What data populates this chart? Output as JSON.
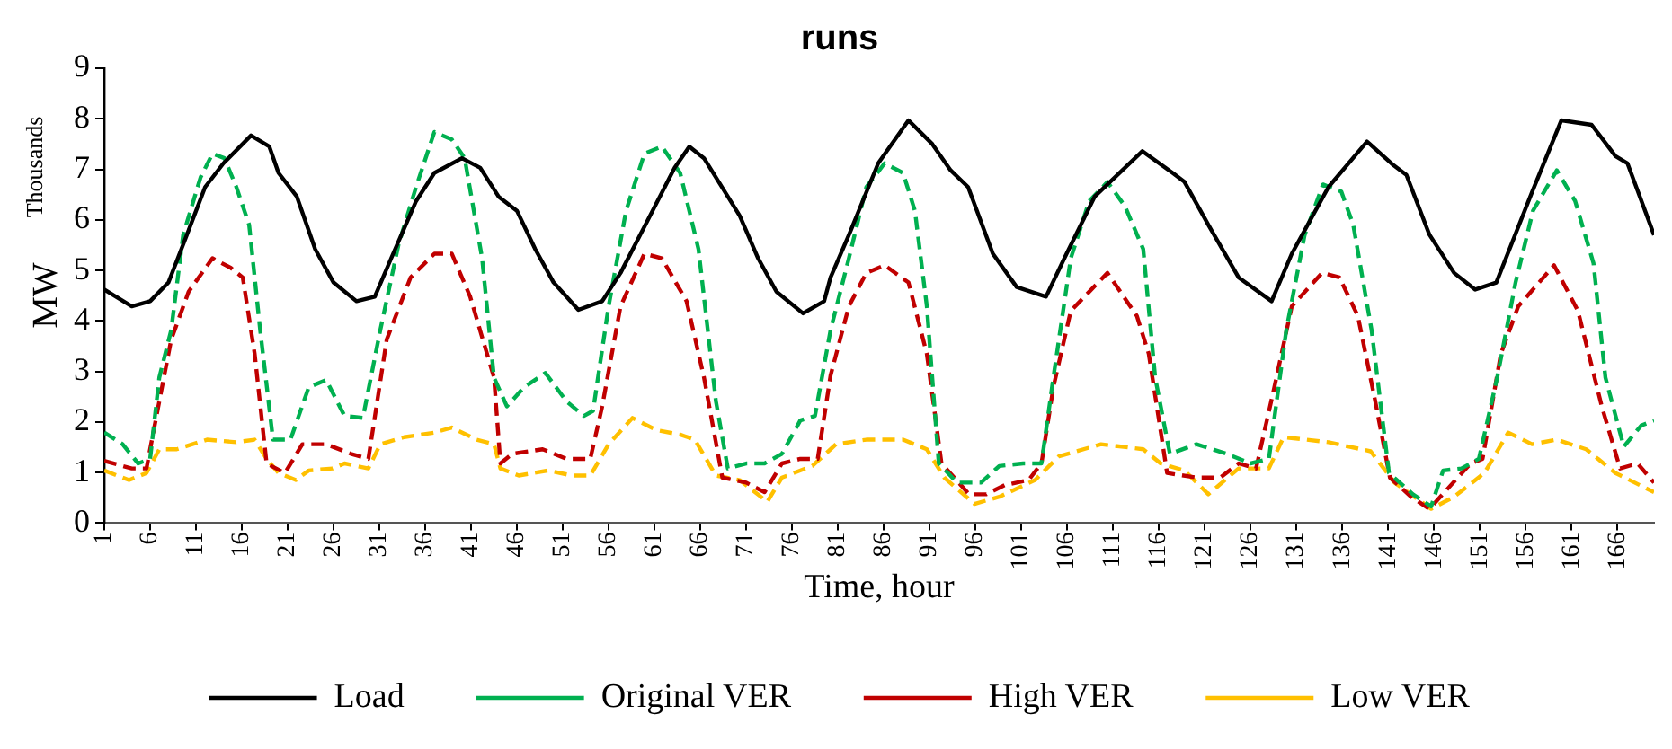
{
  "chart_data": {
    "type": "line",
    "title": "runs",
    "xlabel": "Time, hour",
    "ylabel": "MW",
    "annotations": [
      "Thousands"
    ],
    "xlim": [
      1,
      170
    ],
    "xticks": [
      1,
      6,
      11,
      16,
      21,
      26,
      31,
      36,
      41,
      46,
      51,
      56,
      61,
      66,
      71,
      76,
      81,
      86,
      91,
      96,
      101,
      106,
      111,
      116,
      121,
      126,
      131,
      136,
      141,
      146,
      151,
      156,
      161,
      166
    ],
    "ylim": [
      0,
      9
    ],
    "yticks": [
      0,
      1,
      2,
      3,
      4,
      5,
      6,
      7,
      8,
      9
    ],
    "legend": "bottom",
    "marker": "none",
    "series": [
      {
        "name": "Load",
        "color": "#000000",
        "line_style": "solid",
        "x": [
          1,
          4,
          6,
          8,
          10,
          12,
          14,
          17,
          19,
          20,
          22,
          24,
          26,
          28.5,
          30.5,
          32.5,
          35,
          37,
          40,
          42,
          44,
          46,
          48,
          50,
          52.7,
          55.3,
          57.3,
          60,
          63.2,
          64.8,
          66.4,
          69,
          70.3,
          72.3,
          74.3,
          77.2,
          79.5,
          80.2,
          82.2,
          85.4,
          88.7,
          91.3,
          93.3,
          95.2,
          97.9,
          100.5,
          103.7,
          105.7,
          109,
          114.2,
          117.5,
          118.8,
          121.4,
          124.7,
          128.3,
          130.5,
          134.5,
          138.7,
          141.6,
          143,
          145.5,
          148.2,
          150.5,
          152.8,
          156.7,
          159.9,
          163.2,
          165.8,
          167.1,
          170
        ],
        "values": [
          4.62,
          4.29,
          4.39,
          4.76,
          5.7,
          6.65,
          7.12,
          7.67,
          7.45,
          6.93,
          6.46,
          5.42,
          4.76,
          4.39,
          4.48,
          5.33,
          6.37,
          6.93,
          7.22,
          7.03,
          6.46,
          6.18,
          5.42,
          4.76,
          4.22,
          4.39,
          4.95,
          5.9,
          7.03,
          7.45,
          7.22,
          6.46,
          6.08,
          5.24,
          4.58,
          4.15,
          4.39,
          4.86,
          5.7,
          7.12,
          7.97,
          7.5,
          6.98,
          6.65,
          5.33,
          4.67,
          4.48,
          5.24,
          6.46,
          7.36,
          6.93,
          6.75,
          5.9,
          4.86,
          4.39,
          5.33,
          6.65,
          7.55,
          7.08,
          6.89,
          5.71,
          4.95,
          4.62,
          4.76,
          6.55,
          7.97,
          7.88,
          7.26,
          7.12,
          5.7
        ]
      },
      {
        "name": "Original VER",
        "color": "#00b050",
        "line_style": "dashed",
        "x": [
          1,
          3,
          4.7,
          6,
          7,
          8.3,
          9.6,
          11.5,
          12.8,
          14.1,
          15.4,
          16.8,
          18,
          19.4,
          21.3,
          23.3,
          25.2,
          27.2,
          29.2,
          31.1,
          33.1,
          35,
          37,
          38.9,
          40.3,
          42.2,
          43.5,
          44.9,
          46.8,
          49.1,
          51.4,
          53.3,
          54.3,
          56,
          57.9,
          59.9,
          61.8,
          63.8,
          65.8,
          67.7,
          69,
          71,
          73,
          74.9,
          76.9,
          78.5,
          80.2,
          82.2,
          84.1,
          86.1,
          88.1,
          89.4,
          90.7,
          92,
          94,
          96.6,
          98.6,
          101.2,
          103.2,
          104.5,
          106.4,
          108.4,
          110.4,
          112.3,
          114.3,
          115.6,
          117.2,
          120.1,
          123.4,
          126,
          128,
          129.9,
          131.9,
          133.9,
          135.9,
          137.2,
          139.2,
          141.1,
          143.7,
          145.7,
          147,
          149,
          150.9,
          152.9,
          154.9,
          156.8,
          159.4,
          161.4,
          163.4,
          164.7,
          166.7,
          168.6,
          170
        ],
        "values": [
          1.79,
          1.56,
          1.18,
          1.27,
          2.88,
          3.82,
          5.7,
          6.84,
          7.31,
          7.22,
          6.65,
          5.9,
          3.82,
          1.65,
          1.65,
          2.69,
          2.83,
          2.12,
          2.08,
          3.82,
          5.52,
          6.65,
          7.74,
          7.59,
          7.22,
          5.24,
          2.88,
          2.31,
          2.69,
          2.97,
          2.41,
          2.12,
          2.22,
          4.29,
          6.18,
          7.31,
          7.45,
          6.93,
          5.42,
          2.41,
          1.08,
          1.18,
          1.18,
          1.37,
          2.03,
          2.12,
          3.82,
          5.24,
          6.65,
          7.12,
          6.93,
          6.18,
          4.29,
          1.18,
          0.8,
          0.8,
          1.13,
          1.18,
          1.18,
          2.88,
          5.24,
          6.37,
          6.75,
          6.27,
          5.42,
          2.88,
          1.37,
          1.56,
          1.37,
          1.18,
          1.27,
          3.82,
          5.7,
          6.7,
          6.56,
          5.9,
          3.82,
          0.99,
          0.57,
          0.33,
          1.04,
          1.08,
          1.27,
          2.88,
          4.76,
          6.18,
          6.98,
          6.37,
          5.14,
          2.88,
          1.51,
          1.93,
          2.03
        ]
      },
      {
        "name": "High VER",
        "color": "#c00000",
        "line_style": "dashed",
        "x": [
          1,
          4,
          5.6,
          7,
          8.3,
          10.2,
          12.8,
          14.8,
          16.1,
          17.4,
          18.7,
          20.7,
          22.6,
          25.2,
          27.9,
          29.8,
          31.8,
          34.4,
          37,
          38.9,
          40.9,
          43.5,
          44.2,
          45.5,
          48.8,
          51.4,
          54,
          55.3,
          57.3,
          59.9,
          61.8,
          64.5,
          66.4,
          68.4,
          71,
          73,
          74.9,
          76.9,
          78.8,
          80.2,
          82.2,
          84.1,
          86.1,
          88.7,
          90.7,
          92.3,
          95.3,
          97.2,
          99.2,
          101.8,
          103.2,
          104.5,
          106.4,
          110.4,
          113.6,
          114.9,
          116.9,
          120.1,
          122.7,
          124.7,
          126.6,
          128.6,
          130.5,
          133.8,
          135.7,
          137.7,
          139.6,
          141.2,
          143.5,
          145.5,
          148.1,
          150,
          151.3,
          153.3,
          155.2,
          159.1,
          161.7,
          164.3,
          166.3,
          168.2,
          170
        ],
        "values": [
          1.23,
          1.08,
          1.08,
          2.41,
          3.63,
          4.58,
          5.24,
          5.05,
          4.86,
          3.35,
          1.18,
          0.99,
          1.56,
          1.56,
          1.37,
          1.27,
          3.63,
          4.86,
          5.33,
          5.33,
          4.48,
          2.88,
          1.18,
          1.37,
          1.46,
          1.27,
          1.27,
          2.31,
          4.29,
          5.33,
          5.24,
          4.39,
          2.88,
          0.9,
          0.8,
          0.61,
          1.18,
          1.27,
          1.27,
          2.92,
          4.29,
          4.95,
          5.1,
          4.76,
          3.35,
          1.18,
          0.57,
          0.57,
          0.75,
          0.85,
          1.18,
          2.69,
          4.2,
          4.95,
          4.1,
          3.35,
          0.99,
          0.9,
          0.9,
          1.18,
          1.08,
          2.69,
          4.29,
          4.95,
          4.86,
          4.1,
          2.41,
          0.9,
          0.52,
          0.28,
          0.8,
          1.18,
          1.27,
          3.35,
          4.29,
          5.1,
          4.2,
          2.31,
          1.08,
          1.18,
          0.8
        ]
      },
      {
        "name": "Low VER",
        "color": "#ffc000",
        "line_style": "dashed",
        "x": [
          1,
          3.7,
          5.6,
          7,
          8.9,
          12.2,
          15.4,
          17.4,
          18.7,
          20,
          21.9,
          23.3,
          25.9,
          27.2,
          29.8,
          31.1,
          33.7,
          37,
          38.9,
          41.6,
          43.5,
          44.2,
          46.2,
          49.4,
          52,
          54,
          56,
          58.6,
          61.2,
          63.8,
          65.4,
          67.7,
          70.3,
          73.3,
          74.9,
          78.2,
          80.2,
          80.8,
          84.1,
          88.1,
          90.7,
          92.6,
          95.9,
          98.6,
          102.5,
          105.1,
          109.7,
          114.3,
          116.2,
          118.8,
          121.4,
          124.7,
          128,
          129.6,
          134.5,
          139.1,
          141.7,
          145.7,
          148.2,
          151.5,
          154.1,
          156.7,
          159.4,
          162.6,
          165.8,
          170
        ],
        "values": [
          1.04,
          0.85,
          0.99,
          1.46,
          1.46,
          1.65,
          1.6,
          1.65,
          1.27,
          0.99,
          0.85,
          1.04,
          1.08,
          1.18,
          1.08,
          1.56,
          1.7,
          1.79,
          1.89,
          1.65,
          1.56,
          1.08,
          0.94,
          1.04,
          0.94,
          0.94,
          1.56,
          2.08,
          1.84,
          1.75,
          1.65,
          0.94,
          0.85,
          0.42,
          0.9,
          1.13,
          1.46,
          1.56,
          1.65,
          1.65,
          1.46,
          0.9,
          0.38,
          0.52,
          0.85,
          1.32,
          1.56,
          1.46,
          1.18,
          1.04,
          0.57,
          1.08,
          1.08,
          1.7,
          1.6,
          1.42,
          0.8,
          0.28,
          0.52,
          0.99,
          1.79,
          1.56,
          1.65,
          1.46,
          0.99,
          0.61
        ]
      }
    ]
  }
}
